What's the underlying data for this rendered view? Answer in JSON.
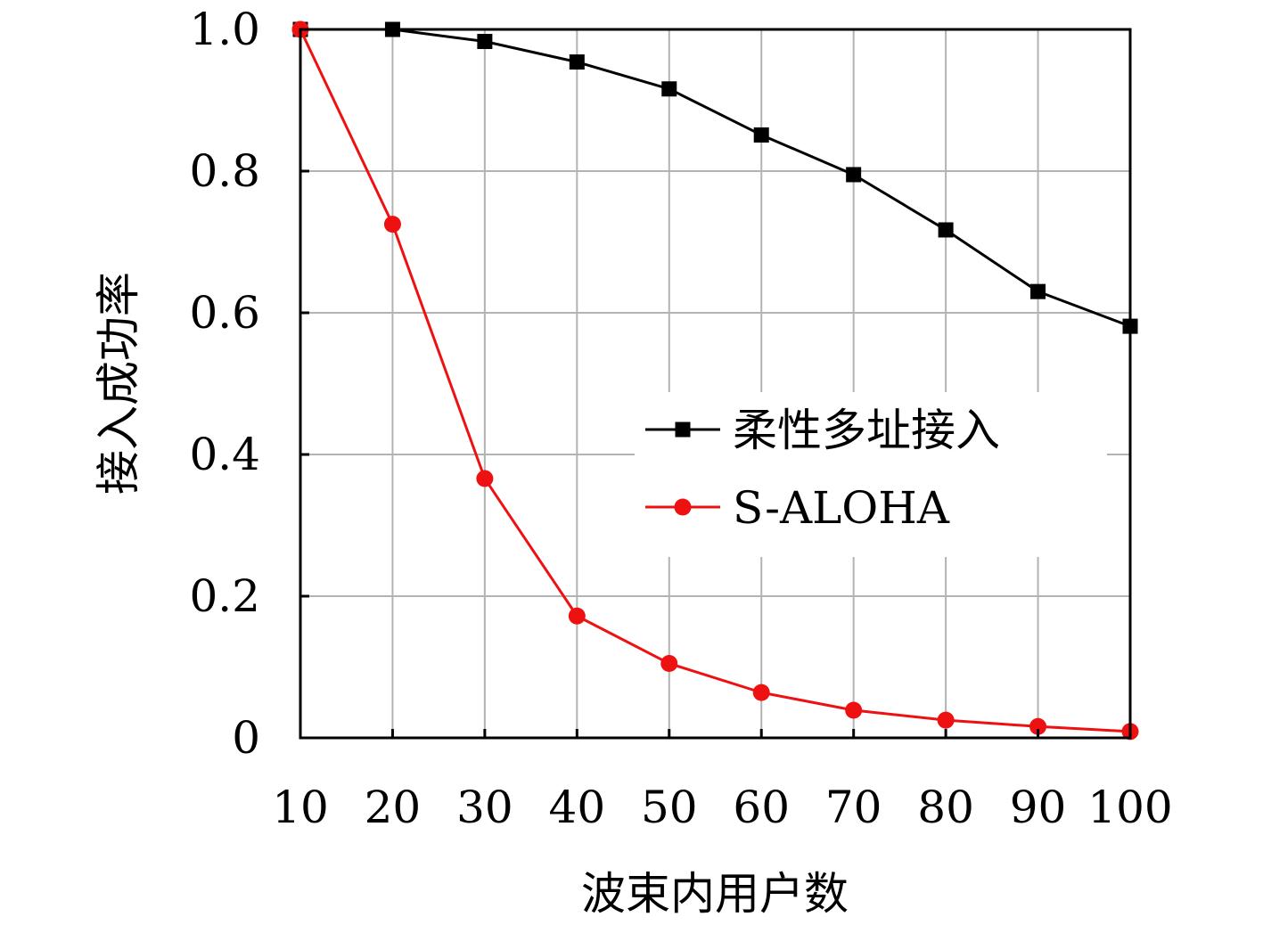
{
  "chart_data": {
    "type": "line",
    "title": "",
    "xlabel": "波束内用户数",
    "ylabel": "接入成功率",
    "x": [
      10,
      20,
      30,
      40,
      50,
      60,
      70,
      80,
      90,
      100
    ],
    "xlim": [
      10,
      100
    ],
    "ylim": [
      0,
      1.0
    ],
    "x_tick_labels": [
      "10",
      "20",
      "30",
      "40",
      "50",
      "60",
      "70",
      "80",
      "90",
      "100"
    ],
    "y_ticks": [
      0,
      0.2,
      0.4,
      0.6,
      0.8,
      1.0
    ],
    "y_tick_labels": [
      "0",
      "0.2",
      "0.4",
      "0.6",
      "0.8",
      "1.0"
    ],
    "grid": true,
    "legend_position": "center-right",
    "series": [
      {
        "name": "柔性多址接入",
        "color": "#000000",
        "marker": "square",
        "values": [
          1.0,
          1.0,
          0.983,
          0.954,
          0.916,
          0.851,
          0.795,
          0.717,
          0.63,
          0.581
        ]
      },
      {
        "name": "S-ALOHA",
        "color": "#ee1111",
        "marker": "circle",
        "values": [
          1.0,
          0.725,
          0.366,
          0.172,
          0.105,
          0.064,
          0.039,
          0.025,
          0.016,
          0.009
        ]
      }
    ]
  }
}
